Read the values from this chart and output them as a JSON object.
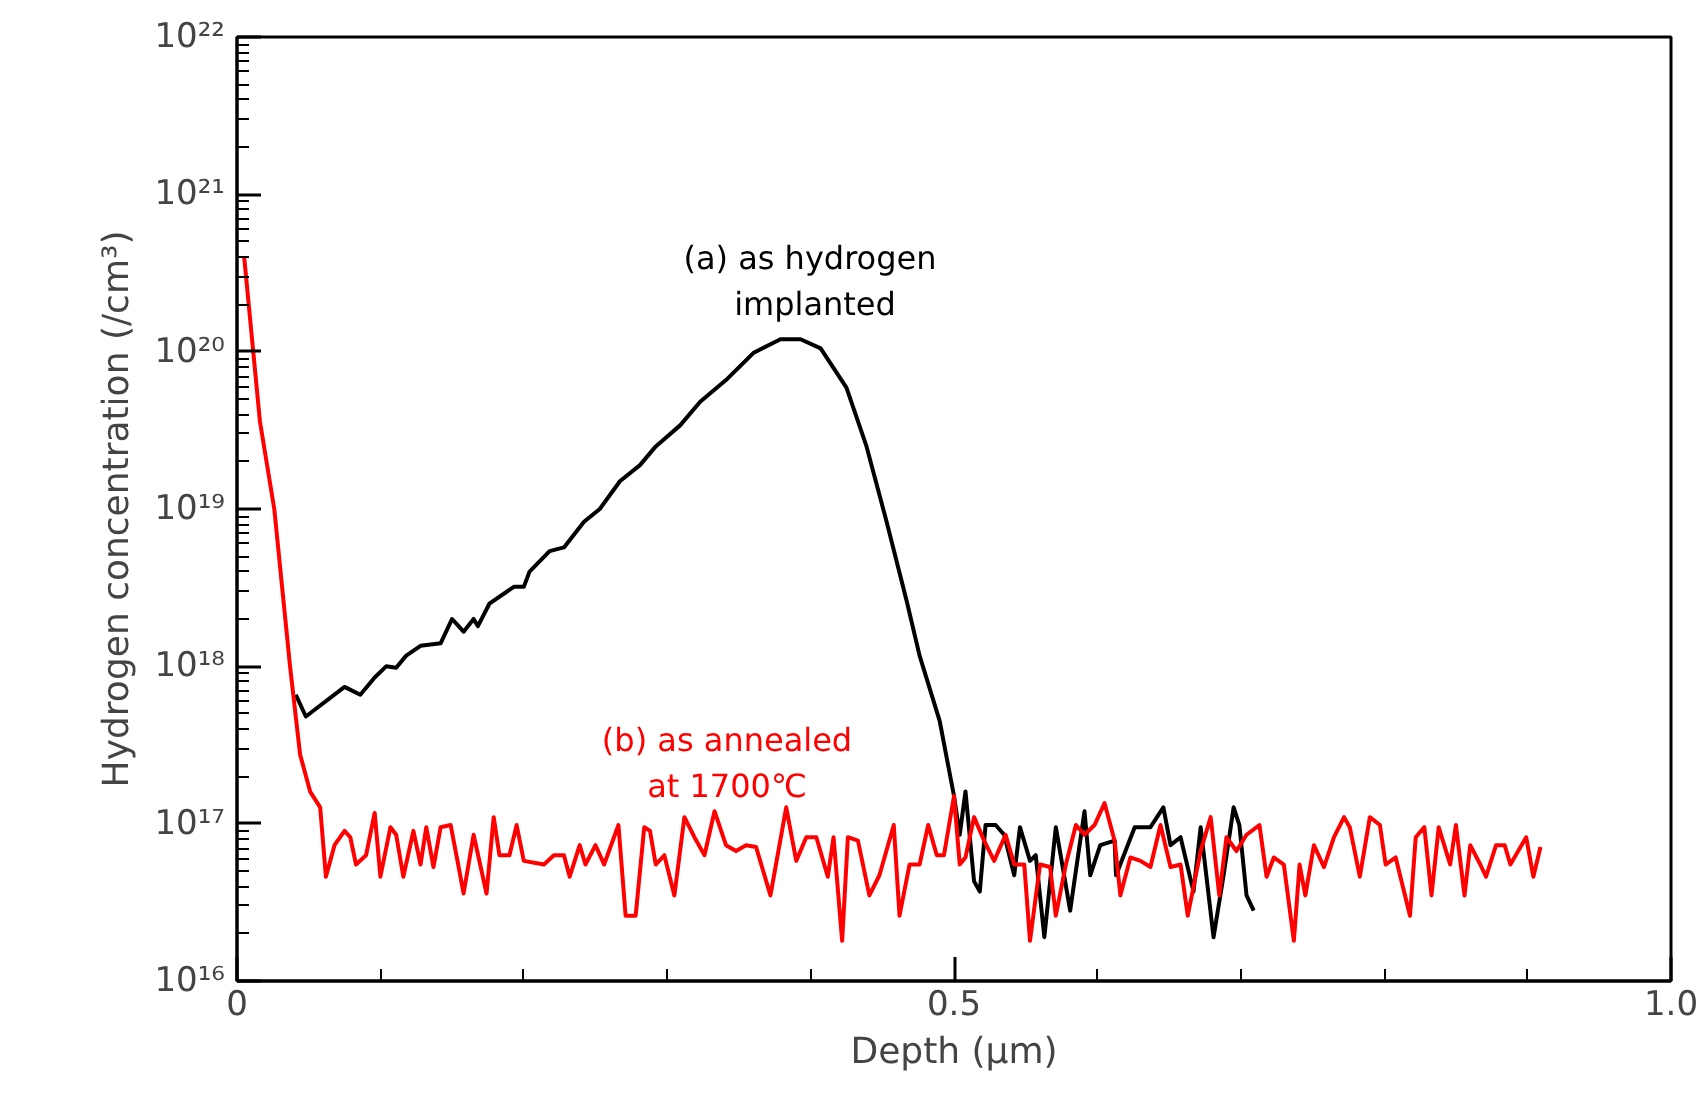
{
  "chart_data": {
    "type": "line",
    "xlabel": "Depth (μm)",
    "ylabel": "Hydrogen concentration (/cm³)",
    "log": "y",
    "grid": false,
    "marker": "none",
    "line_style": "solid",
    "xlim": [
      0,
      1.0
    ],
    "xticks": [
      0,
      {
        "value": 0.1,
        "label": null
      },
      {
        "value": 0.2,
        "label": null
      },
      {
        "value": 0.3,
        "label": null
      },
      {
        "value": 0.4,
        "label": null
      },
      {
        "value": 0.5,
        "label": "0.5"
      },
      {
        "value": 0.6,
        "label": null
      },
      {
        "value": 0.7,
        "label": null
      },
      {
        "value": 0.8,
        "label": null
      },
      {
        "value": 0.9,
        "label": null
      },
      {
        "value": 1.0,
        "label": "1.0"
      }
    ],
    "ylim": [
      1e+16,
      1e+22
    ],
    "yticks": [
      {
        "value": 1e+16,
        "label": "10¹⁶"
      },
      {
        "value": 1e+17,
        "label": "10¹⁷"
      },
      {
        "value": 1e+18,
        "label": "10¹⁸"
      },
      {
        "value": 1e+19,
        "label": "10¹⁹"
      },
      {
        "value": 1e+20,
        "label": "10²⁰"
      },
      {
        "value": 1e+21,
        "label": "10²¹"
      },
      {
        "value": 1e+22,
        "label": "10²²"
      }
    ],
    "series": [
      {
        "name": "(a)  as hydrogen\nimplanted",
        "color": "#000000",
        "x": [
          0.041,
          0.048,
          0.075,
          0.086,
          0.096,
          0.104,
          0.111,
          0.118,
          0.128,
          0.142,
          0.15,
          0.158,
          0.165,
          0.168,
          0.176,
          0.193,
          0.2,
          0.204,
          0.218,
          0.228,
          0.242,
          0.253,
          0.267,
          0.281,
          0.292,
          0.309,
          0.323,
          0.341,
          0.36,
          0.379,
          0.393,
          0.407,
          0.425,
          0.439,
          0.453,
          0.467,
          0.476,
          0.49,
          0.5,
          0.504,
          0.508,
          0.514,
          0.518,
          0.522,
          0.529,
          0.535,
          0.542,
          0.546,
          0.553,
          0.557,
          0.563,
          0.571,
          0.581,
          0.591,
          0.595,
          0.602,
          0.612,
          0.613,
          0.626,
          0.637,
          0.646,
          0.651,
          0.658,
          0.667,
          0.672,
          0.681,
          0.688,
          0.695,
          0.699,
          0.704,
          0.709
        ],
        "values": [
          6.6e+17,
          4.8e+17,
          7.4e+17,
          6.6e+17,
          8.5e+17,
          1e+18,
          9.8e+17,
          1.17e+18,
          1.35e+18,
          1.4e+18,
          2e+18,
          1.66e+18,
          2e+18,
          1.8e+18,
          2.5e+18,
          3.2e+18,
          3.2e+18,
          4e+18,
          5.4e+18,
          5.7e+18,
          8.3e+18,
          1e+19,
          1.5e+19,
          1.9e+19,
          2.5e+19,
          3.4e+19,
          4.8e+19,
          6.6e+19,
          9.8e+19,
          1.2e+20,
          1.2e+20,
          1.05e+20,
          5.9e+19,
          2.5e+19,
          8.3e+18,
          2.6e+18,
          1.17e+18,
          4.5e+17,
          1.5e+17,
          8.5e+16,
          1.6e+17,
          4.3e+16,
          3.7e+16,
          9.8e+16,
          9.8e+16,
          8.5e+16,
          4.7e+16,
          9.5e+16,
          5.8e+16,
          6.3e+16,
          1.9e+16,
          9.5e+16,
          2.8e+16,
          1.2e+17,
          4.7e+16,
          7.3e+16,
          7.8e+16,
          4.7e+16,
          9.5e+16,
          9.5e+16,
          1.27e+17,
          7.3e+16,
          8.2e+16,
          3.7e+16,
          9.5e+16,
          1.9e+16,
          4.7e+16,
          1.27e+17,
          9.8e+16,
          3.5e+16,
          2.8e+16
        ]
      },
      {
        "name": "(b) as annealed\nat 1700℃",
        "color": "#ff0000",
        "x": [
          0.005,
          0.016,
          0.026,
          0.037,
          0.044,
          0.051,
          0.058,
          0.062,
          0.068,
          0.075,
          0.079,
          0.083,
          0.09,
          0.096,
          0.1,
          0.107,
          0.111,
          0.116,
          0.123,
          0.128,
          0.132,
          0.137,
          0.142,
          0.149,
          0.153,
          0.158,
          0.165,
          0.174,
          0.179,
          0.183,
          0.19,
          0.195,
          0.2,
          0.214,
          0.221,
          0.228,
          0.232,
          0.239,
          0.243,
          0.25,
          0.256,
          0.266,
          0.271,
          0.278,
          0.284,
          0.288,
          0.292,
          0.298,
          0.305,
          0.312,
          0.319,
          0.326,
          0.333,
          0.341,
          0.348,
          0.355,
          0.362,
          0.372,
          0.383,
          0.39,
          0.397,
          0.404,
          0.412,
          0.416,
          0.422,
          0.426,
          0.433,
          0.441,
          0.448,
          0.458,
          0.462,
          0.469,
          0.476,
          0.482,
          0.488,
          0.493,
          0.5,
          0.504,
          0.508,
          0.514,
          0.521,
          0.528,
          0.536,
          0.542,
          0.549,
          0.553,
          0.56,
          0.567,
          0.571,
          0.578,
          0.585,
          0.591,
          0.598,
          0.605,
          0.612,
          0.616,
          0.623,
          0.63,
          0.637,
          0.644,
          0.651,
          0.658,
          0.663,
          0.672,
          0.679,
          0.685,
          0.69,
          0.697,
          0.704,
          0.713,
          0.718,
          0.723,
          0.73,
          0.737,
          0.741,
          0.745,
          0.751,
          0.758,
          0.765,
          0.772,
          0.776,
          0.783,
          0.79,
          0.797,
          0.801,
          0.808,
          0.818,
          0.822,
          0.828,
          0.833,
          0.838,
          0.846,
          0.85,
          0.856,
          0.86,
          0.867,
          0.871,
          0.878,
          0.884,
          0.888,
          0.899,
          0.904,
          0.909
        ],
        "values": [
          4e+20,
          3.6e+19,
          1e+19,
          1e+18,
          2.75e+17,
          1.6e+17,
          1.27e+17,
          4.6e+16,
          7.3e+16,
          9e+16,
          8.2e+16,
          5.5e+16,
          6.3e+16,
          1.17e+17,
          4.6e+16,
          9.5e+16,
          8.5e+16,
          4.6e+16,
          9e+16,
          5.5e+16,
          9.5e+16,
          5.3e+16,
          9.5e+16,
          9.8e+16,
          6.3e+16,
          3.6e+16,
          8.5e+16,
          3.6e+16,
          1.1e+17,
          6.3e+16,
          6.3e+16,
          9.8e+16,
          5.8e+16,
          5.5e+16,
          6.3e+16,
          6.3e+16,
          4.6e+16,
          7.3e+16,
          5.5e+16,
          7.3e+16,
          5.5e+16,
          9.8e+16,
          2.6e+16,
          2.6e+16,
          9.5e+16,
          9e+16,
          5.5e+16,
          6.3e+16,
          3.5e+16,
          1.1e+17,
          8.2e+16,
          6.3e+16,
          1.2e+17,
          7.3e+16,
          6.7e+16,
          7.3e+16,
          7.1e+16,
          3.5e+16,
          1.27e+17,
          5.8e+16,
          8.2e+16,
          8.2e+16,
          4.6e+16,
          8.2e+16,
          1.8e+16,
          8.2e+16,
          7.8e+16,
          3.5e+16,
          4.7e+16,
          9.8e+16,
          2.6e+16,
          5.5e+16,
          5.5e+16,
          9.8e+16,
          6.3e+16,
          6.3e+16,
          1.5e+17,
          5.5e+16,
          6.1e+16,
          1.1e+17,
          7.8e+16,
          5.8e+16,
          8.5e+16,
          5.5e+16,
          5.5e+16,
          1.8e+16,
          5.5e+16,
          5.3e+16,
          2.6e+16,
          5.5e+16,
          9.8e+16,
          8.5e+16,
          9.8e+16,
          1.35e+17,
          7.8e+16,
          3.5e+16,
          6.1e+16,
          5.8e+16,
          5.3e+16,
          9.8e+16,
          5.3e+16,
          5.5e+16,
          2.6e+16,
          6.7e+16,
          1.1e+17,
          3.5e+16,
          8.2e+16,
          6.7e+16,
          8.5e+16,
          9.8e+16,
          4.6e+16,
          6.1e+16,
          5.5e+16,
          1.8e+16,
          5.5e+16,
          3.5e+16,
          7.3e+16,
          5.3e+16,
          8.2e+16,
          1.1e+17,
          9.5e+16,
          4.6e+16,
          1.1e+17,
          9.8e+16,
          5.5e+16,
          6.1e+16,
          2.6e+16,
          8.2e+16,
          9.5e+16,
          3.5e+16,
          9.5e+16,
          5.5e+16,
          9.8e+16,
          3.5e+16,
          7.3e+16,
          5.5e+16,
          4.6e+16,
          7.3e+16,
          7.3e+16,
          5.5e+16,
          8.2e+16,
          4.6e+16,
          7.1e+16
        ]
      }
    ]
  }
}
